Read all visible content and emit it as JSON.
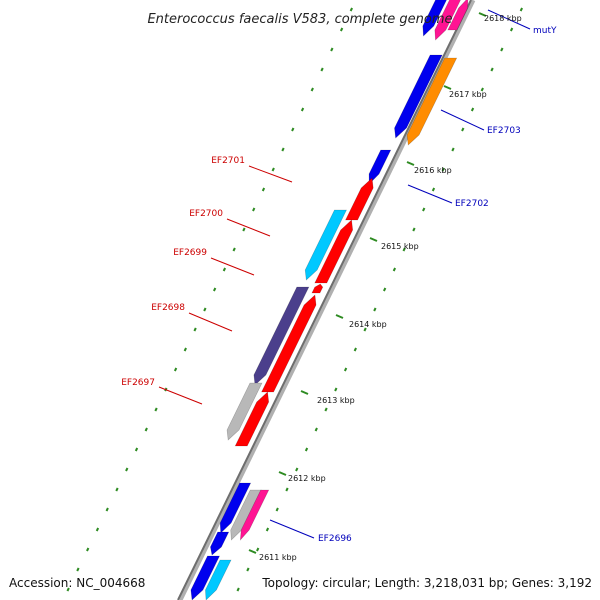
{
  "title": "Enterococcus faecalis V583, complete genome",
  "accession": "Accession: NC_004668",
  "topology": "Topology: circular; Length: 3,218,031 bp; Genes: 3,192",
  "colors": {
    "backbone": "#8c8c8c",
    "tick_dots": "#2e8b22",
    "label_red": "#cc0000",
    "label_blue": "#0000bb",
    "gene_red": "#ff0000",
    "gene_blue": "#0000ee",
    "gene_cyan": "#00c8ff",
    "gene_purple": "#4b3f8c",
    "gene_gray": "#b8b8b8",
    "gene_orange": "#ff8c00",
    "gene_pink": "#ff1493"
  },
  "scale_ticks": [
    {
      "label": "2618 kbp"
    },
    {
      "label": "2617 kbp"
    },
    {
      "label": "2616 kbp"
    },
    {
      "label": "2615 kbp"
    },
    {
      "label": "2614 kbp"
    },
    {
      "label": "2613 kbp"
    },
    {
      "label": "2612 kbp"
    },
    {
      "label": "2611 kbp"
    }
  ],
  "gene_labels": [
    {
      "name": "mutY",
      "color": "blue"
    },
    {
      "name": "EF2703",
      "color": "blue"
    },
    {
      "name": "EF2702",
      "color": "blue"
    },
    {
      "name": "EF2701",
      "color": "red"
    },
    {
      "name": "EF2700",
      "color": "red"
    },
    {
      "name": "EF2699",
      "color": "red"
    },
    {
      "name": "EF2698",
      "color": "red"
    },
    {
      "name": "EF2697",
      "color": "red"
    },
    {
      "name": "EF2696",
      "color": "blue"
    }
  ]
}
